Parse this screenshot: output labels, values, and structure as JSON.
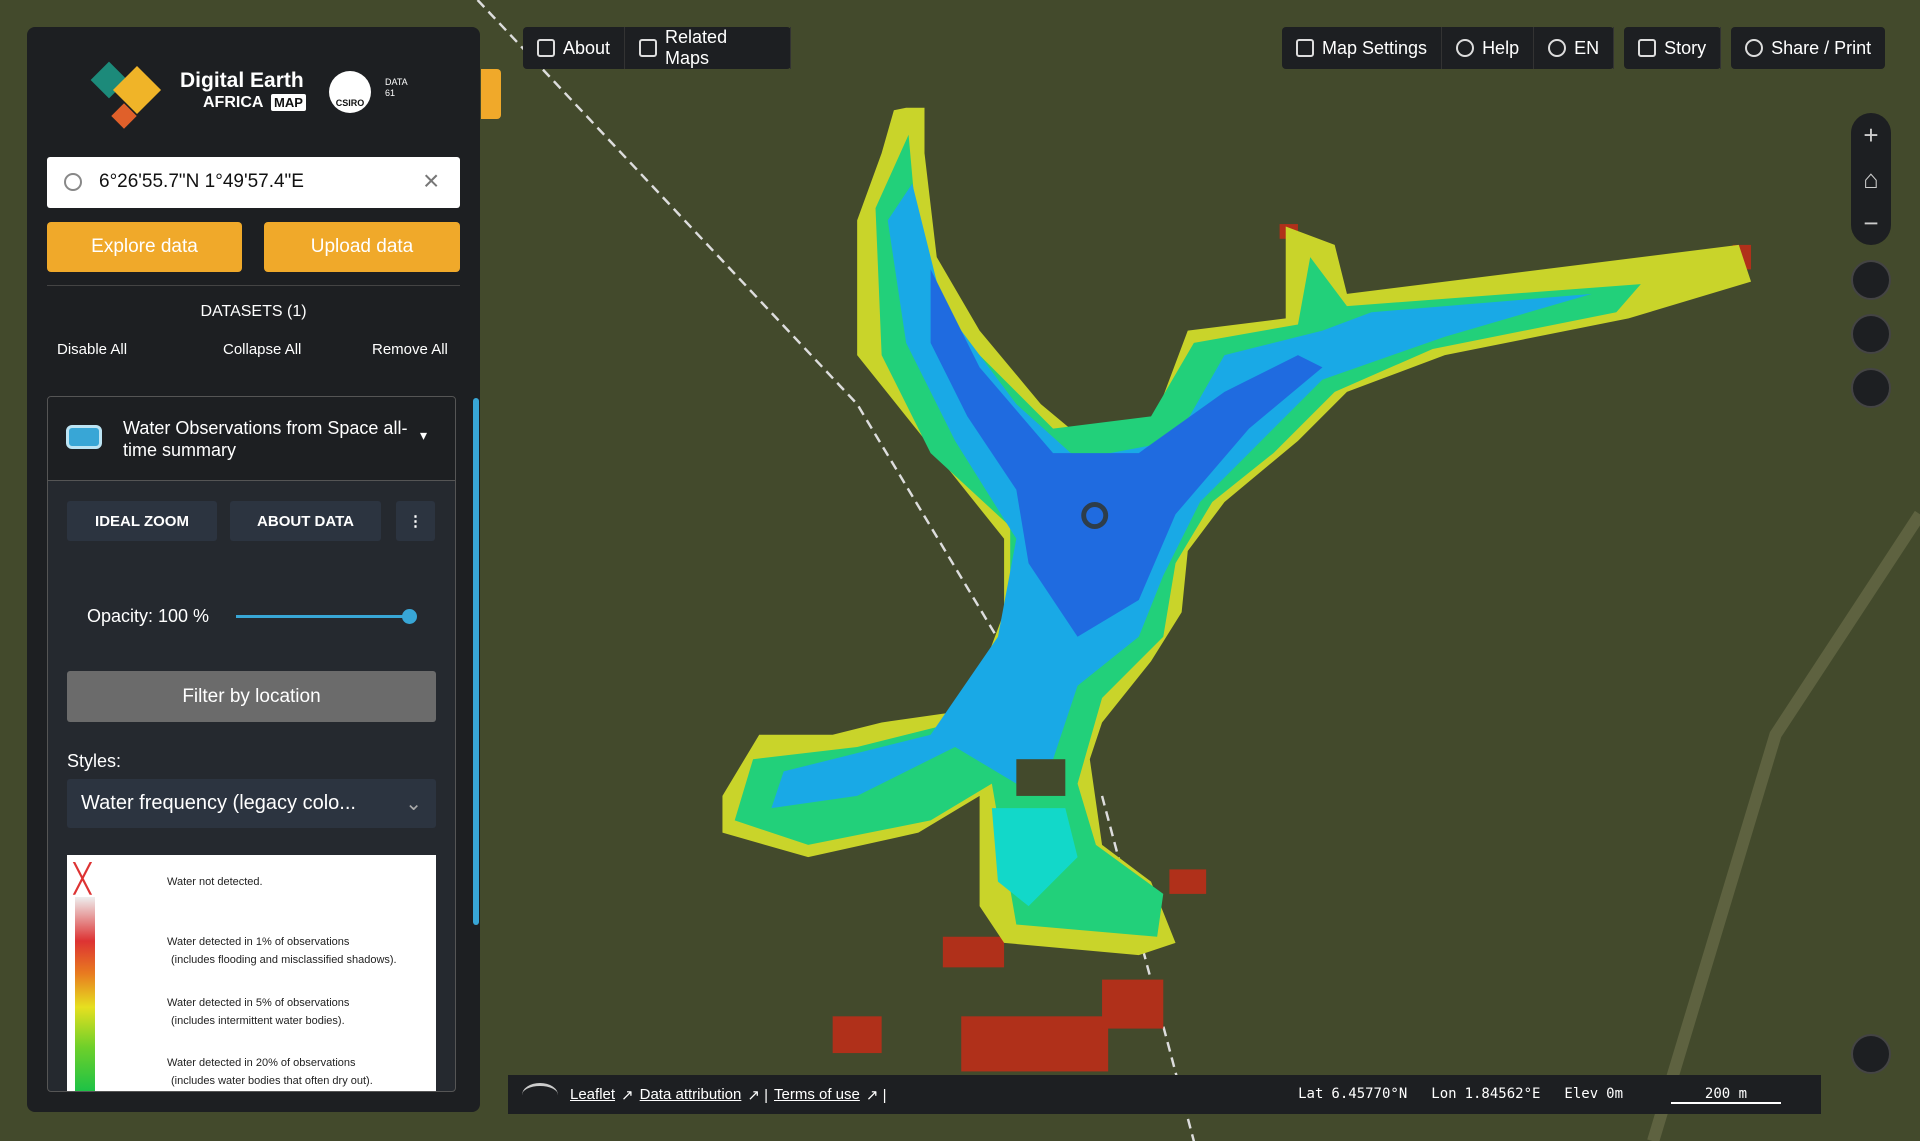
{
  "logo": {
    "title": "Digital Earth",
    "subtitle": "AFRICA",
    "badge": "MAP",
    "partner1": "CSIRO",
    "partner2": "DATA 61"
  },
  "search": {
    "value": "6°26'55.7\"N 1°49'57.4\"E"
  },
  "buttons": {
    "explore": "Explore data",
    "upload": "Upload data"
  },
  "datasets": {
    "heading": "DATASETS (1)",
    "disable_all": "Disable All",
    "collapse_all": "Collapse All",
    "remove_all": "Remove All"
  },
  "layer": {
    "title": "Water Observations from Space all-time summary",
    "ideal_zoom": "IDEAL ZOOM",
    "about_data": "ABOUT DATA",
    "opacity_label": "Opacity: 100 %",
    "filter": "Filter by location",
    "styles_label": "Styles:",
    "style_value": "Water frequency (legacy colo...",
    "legend": [
      "Water not detected.",
      "Water detected in 1% of observations",
      "(includes flooding and misclassified shadows).",
      "Water detected in 5% of observations",
      "(includes intermittent water bodies).",
      "Water detected in 20% of observations",
      "(includes water bodies that often dry out)."
    ]
  },
  "top_nav": [
    "About",
    "Related Maps"
  ],
  "top_right": [
    "Map Settings",
    "Help",
    "EN",
    "Story",
    "Share / Print"
  ],
  "footer": {
    "links": [
      "Leaflet",
      "Data attribution",
      "Terms of use"
    ],
    "lat_label": "Lat",
    "lat": "6.45770°N",
    "lon_label": "Lon",
    "lon": "1.84562°E",
    "elev_label": "Elev",
    "elev": "0m",
    "scale": "200 m"
  }
}
